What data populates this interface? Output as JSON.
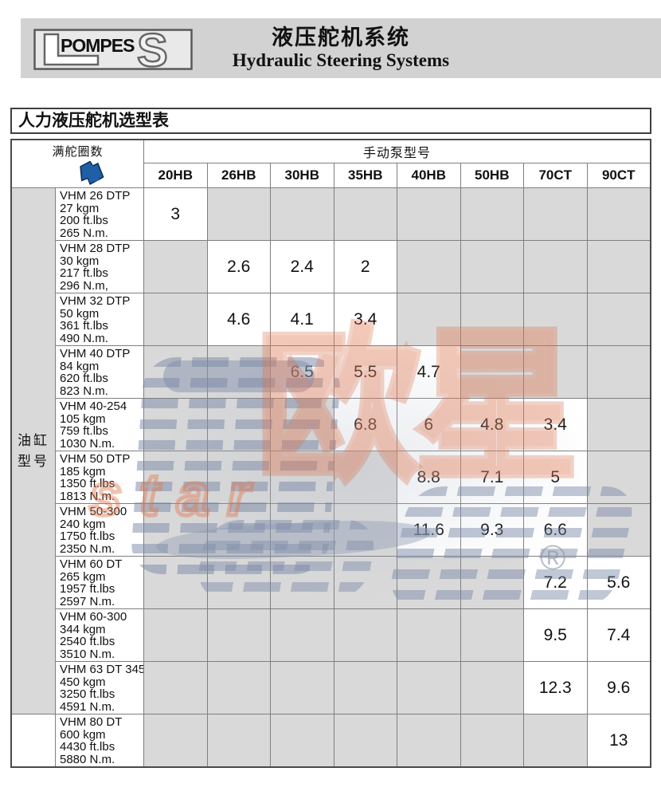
{
  "brand": {
    "logo_left": "L",
    "logo_center": "POMPES",
    "logo_right": "S",
    "title_cn": "液压舵机系统",
    "title_en": "Hydraulic Steering Systems"
  },
  "table": {
    "title": "人力液压舵机选型表",
    "corner_label": "满舵圈数",
    "pump_group_label": "手动泵型号",
    "pump_columns": [
      "20HB",
      "26HB",
      "30HB",
      "35HB",
      "40HB",
      "50HB",
      "70CT",
      "90CT"
    ],
    "side_label_lines": [
      "油缸",
      "型号"
    ],
    "rows": [
      {
        "model": "VHM 26 DTP",
        "specs": [
          "27 kgm",
          "200 ft.lbs",
          "265 N.m."
        ],
        "values": [
          "3",
          "",
          "",
          "",
          "",
          "",
          "",
          ""
        ]
      },
      {
        "model": "VHM 28 DTP",
        "specs": [
          "30 kgm",
          "217 ft.lbs",
          "296 N.m,"
        ],
        "values": [
          "",
          "2.6",
          "2.4",
          "2",
          "",
          "",
          "",
          ""
        ]
      },
      {
        "model": "VHM 32 DTP",
        "specs": [
          "50 kgm",
          "361 ft.lbs",
          "490 N.m."
        ],
        "values": [
          "",
          "4.6",
          "4.1",
          "3.4",
          "",
          "",
          "",
          ""
        ]
      },
      {
        "model": "VHM 40 DTP",
        "specs": [
          "84 kgm",
          "620 ft.lbs",
          "823 N.m."
        ],
        "values": [
          "",
          "",
          "6.5",
          "5.5",
          "4.7",
          "",
          "",
          ""
        ]
      },
      {
        "model": "VHM 40-254",
        "specs": [
          "105 kgm",
          "759 ft.lbs",
          "1030 N.m."
        ],
        "values": [
          "",
          "",
          "",
          "6.8",
          "6",
          "4.8",
          "3.4",
          ""
        ]
      },
      {
        "model": "VHM 50 DTP",
        "specs": [
          "185 kgm",
          "1350 ft.lbs",
          "1813 N.m."
        ],
        "values": [
          "",
          "",
          "",
          "",
          "8.8",
          "7.1",
          "5",
          ""
        ]
      },
      {
        "model": "VHM 50-300",
        "specs": [
          "240 kgm",
          "1750 ft.lbs",
          "2350 N.m."
        ],
        "values": [
          "",
          "",
          "",
          "",
          "11.6",
          "9.3",
          "6.6",
          ""
        ]
      },
      {
        "model": "VHM 60 DT",
        "specs": [
          "265 kgm",
          "1957 ft.lbs",
          "2597 N.m."
        ],
        "values": [
          "",
          "",
          "",
          "",
          "",
          "",
          "7.2",
          "5.6"
        ]
      },
      {
        "model": "VHM 60-300",
        "specs": [
          "344 kgm",
          "2540 ft.lbs",
          "3510 N.m."
        ],
        "values": [
          "",
          "",
          "",
          "",
          "",
          "",
          "9.5",
          "7.4"
        ]
      },
      {
        "model": "VHM 63 DT 345",
        "specs": [
          "450 kgm",
          "3250 ft.lbs",
          "4591 N.m."
        ],
        "values": [
          "",
          "",
          "",
          "",
          "",
          "",
          "12.3",
          "9.6"
        ]
      },
      {
        "model": "VHM 80 DT",
        "specs": [
          "600 kgm",
          "4430 ft.lbs",
          "5880 N.m."
        ],
        "values": [
          "",
          "",
          "",
          "",
          "",
          "",
          "",
          "13"
        ]
      }
    ]
  },
  "watermark": {
    "cn": "欧星",
    "en": "star",
    "reg": "®"
  },
  "colors": {
    "accent_blue": "#1e5fa8",
    "empty_cell_gray": "#d9d9d9",
    "banner_gray": "#d2d2d2",
    "grid_line": "#7f7f7f",
    "watermark_red": "#dd704b",
    "watermark_gray": "#8f9ab0"
  }
}
